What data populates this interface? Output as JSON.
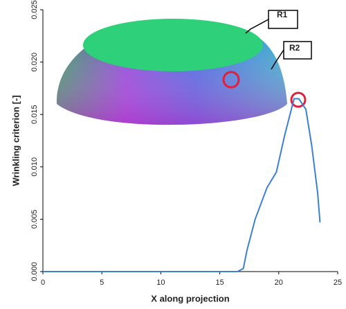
{
  "chart_data": {
    "type": "line",
    "xlabel": "X along projection",
    "ylabel": "Wrinkling criterion [-]",
    "annotations": [
      "R1",
      "R2"
    ],
    "xlim": [
      0,
      25
    ],
    "xticks": [
      0,
      5,
      10,
      15,
      20,
      25
    ],
    "ylim": [
      0,
      0.025
    ],
    "yticks": [
      {
        "value": 0,
        "label": "0.000"
      },
      {
        "value": 0.005,
        "label": "0.005"
      },
      {
        "value": 0.01,
        "label": "0.010"
      },
      {
        "value": 0.015,
        "label": "0.015"
      },
      {
        "value": 0.02,
        "label": "0.020"
      },
      {
        "value": 0.025,
        "label": "0.025"
      }
    ],
    "series": [
      {
        "color": "#3b7fd0",
        "x": [
          0,
          16.5,
          17,
          17.3,
          18,
          19,
          19.8,
          20.5,
          21.3,
          21.7,
          22.3,
          22.8,
          23.3,
          23.5
        ],
        "values": [
          0,
          0,
          0.0003,
          0.002,
          0.005,
          0.008,
          0.0095,
          0.013,
          0.0165,
          0.0165,
          0.0155,
          0.012,
          0.0075,
          0.0047
        ]
      }
    ]
  }
}
